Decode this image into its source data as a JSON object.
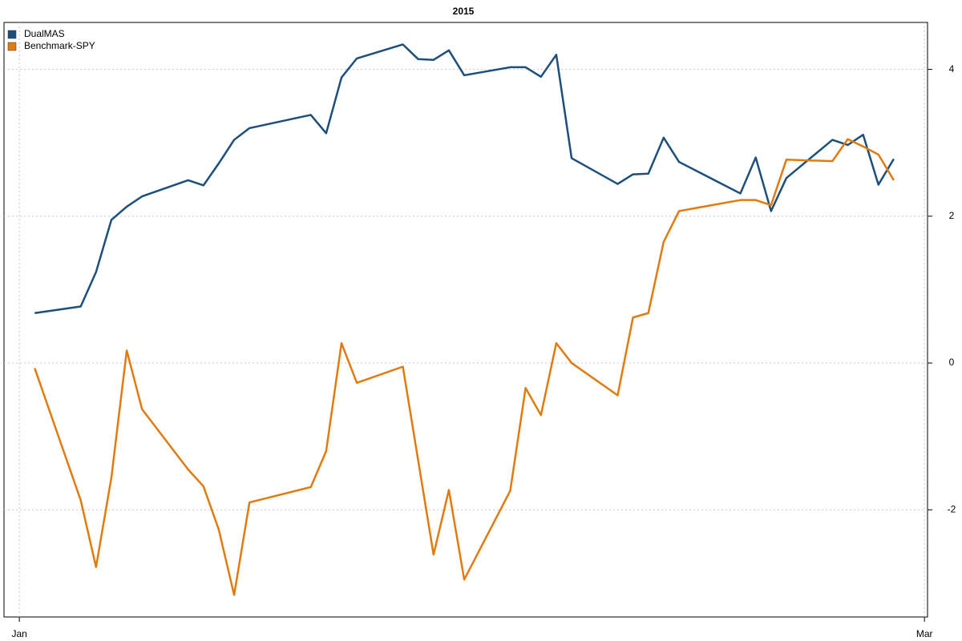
{
  "chart_data": {
    "type": "line",
    "title": "2015",
    "x": [
      1,
      4,
      5,
      6,
      7,
      8,
      11,
      12,
      13,
      14,
      15,
      19,
      20,
      21,
      22,
      25,
      26,
      27,
      28,
      29,
      32,
      33,
      34,
      35,
      36,
      39,
      40,
      41,
      42,
      43,
      47,
      48,
      49,
      50,
      53,
      54,
      55,
      56,
      57
    ],
    "xlim": [
      -1,
      59.2
    ],
    "xticks": [
      {
        "value": 0,
        "label": "Jan"
      },
      {
        "value": 59,
        "label": "Mar"
      }
    ],
    "ylim": [
      -3.46,
      4.64
    ],
    "yticks": [
      -2,
      0,
      2,
      4
    ],
    "grid": true,
    "legend": "topleft",
    "series": [
      {
        "name": "DualMAS",
        "color": "#1c4f7c",
        "values": [
          0.68,
          0.77,
          1.24,
          1.95,
          2.13,
          2.27,
          2.49,
          2.42,
          2.72,
          3.04,
          3.2,
          3.38,
          3.13,
          3.89,
          4.15,
          4.34,
          4.14,
          4.13,
          4.26,
          3.92,
          4.03,
          4.03,
          3.9,
          4.2,
          2.79,
          2.44,
          2.57,
          2.58,
          3.07,
          2.74,
          2.31,
          2.8,
          2.07,
          2.52,
          3.04,
          2.97,
          3.11,
          2.43,
          2.78
        ]
      },
      {
        "name": "Benchmark-SPY",
        "color": "#e07b10",
        "values": [
          -0.07,
          -1.87,
          -2.78,
          -1.56,
          0.17,
          -0.63,
          -1.45,
          -1.68,
          -2.27,
          -3.16,
          -1.9,
          -1.69,
          -1.2,
          0.27,
          -0.27,
          -0.05,
          -1.33,
          -2.61,
          -1.73,
          -2.95,
          -1.74,
          -0.34,
          -0.71,
          0.27,
          0.0,
          -0.44,
          0.62,
          0.68,
          1.65,
          2.07,
          2.22,
          2.22,
          2.15,
          2.77,
          2.75,
          3.05,
          2.95,
          2.84,
          2.49
        ]
      }
    ]
  }
}
